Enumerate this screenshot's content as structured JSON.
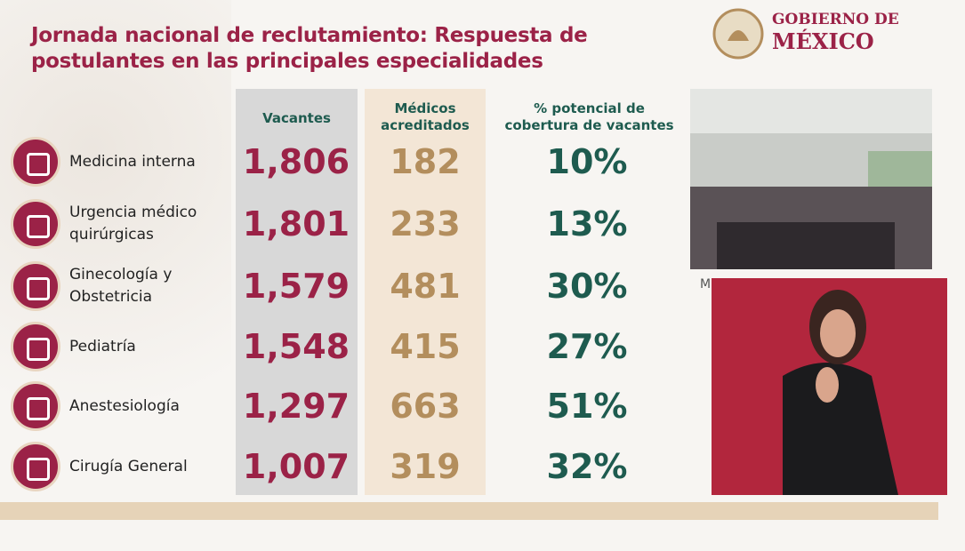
{
  "header": {
    "title": [
      "Jornada nacional de reclutamiento: Respuesta de",
      "postulantes en las principales especialidades"
    ],
    "logo": [
      "GOBIERNO DE",
      "MÉXICO"
    ]
  },
  "table": {
    "columns": [
      [
        "Vacantes"
      ],
      [
        "Médicos",
        "acreditados"
      ],
      [
        "% potencial de",
        "cobertura de vacantes"
      ]
    ],
    "rows": [
      {
        "name": [
          "Medicina interna"
        ],
        "vacantes": "1,806",
        "medicos": "182",
        "cobertura": "10%"
      },
      {
        "name": [
          "Urgencia médico",
          "quirúrgicas"
        ],
        "vacantes": "1,801",
        "medicos": "233",
        "cobertura": "13%"
      },
      {
        "name": [
          "Ginecología y",
          "Obstetricia"
        ],
        "vacantes": "1,579",
        "medicos": "481",
        "cobertura": "30%"
      },
      {
        "name": [
          "Pediatría"
        ],
        "vacantes": "1,548",
        "medicos": "415",
        "cobertura": "27%"
      },
      {
        "name": [
          "Anestesiología"
        ],
        "vacantes": "1,297",
        "medicos": "663",
        "cobertura": "51%"
      },
      {
        "name": [
          "Cirugía General"
        ],
        "vacantes": "1,007",
        "medicos": "319",
        "cobertura": "32%"
      }
    ]
  },
  "photo_caption": "M"
}
